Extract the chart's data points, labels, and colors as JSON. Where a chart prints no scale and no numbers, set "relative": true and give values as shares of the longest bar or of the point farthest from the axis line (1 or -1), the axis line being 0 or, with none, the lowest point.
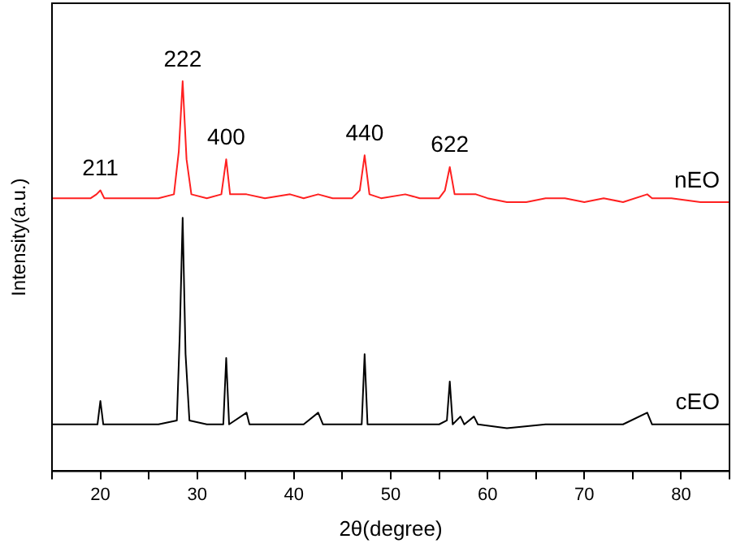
{
  "chart_data": {
    "type": "line",
    "relative": true,
    "xlabel": "2θ(degree)",
    "ylabel": "Intensity(a.u.)",
    "xlim": [
      15,
      85
    ],
    "xticks": [
      {
        "value": 15,
        "label": null
      },
      20,
      {
        "value": 25,
        "label": null
      },
      30,
      {
        "value": 35,
        "label": null
      },
      40,
      {
        "value": 45,
        "label": null
      },
      50,
      {
        "value": 55,
        "label": null
      },
      60,
      {
        "value": 65,
        "label": null
      },
      70,
      {
        "value": 75,
        "label": null
      },
      80,
      {
        "value": 85,
        "label": null
      }
    ],
    "tick_labels": "x",
    "grid": false,
    "legend": false,
    "marker": "none",
    "line_style": "solid",
    "series": [
      {
        "name": "nEO",
        "color": "#ff2020",
        "x": [
          15,
          17,
          19,
          19.6,
          20,
          20.4,
          22,
          24,
          26,
          27.6,
          28.1,
          28.5,
          28.9,
          29.4,
          31,
          32.5,
          33,
          33.4,
          35.1,
          37,
          39.6,
          41,
          42.5,
          44,
          46,
          46.8,
          47.3,
          47.8,
          49,
          51.5,
          53,
          55,
          55.6,
          56.1,
          56.6,
          57.3,
          58.8,
          60,
          62,
          64,
          66,
          68,
          70,
          72,
          74,
          76.5,
          77,
          79,
          82,
          85
        ],
        "values": [
          0.7,
          0.7,
          0.7,
          0.71,
          0.72,
          0.7,
          0.7,
          0.7,
          0.7,
          0.71,
          0.82,
          1,
          0.8,
          0.71,
          0.7,
          0.71,
          0.8,
          0.71,
          0.71,
          0.7,
          0.71,
          0.7,
          0.71,
          0.7,
          0.7,
          0.72,
          0.81,
          0.71,
          0.7,
          0.71,
          0.7,
          0.7,
          0.72,
          0.78,
          0.71,
          0.71,
          0.71,
          0.7,
          0.69,
          0.69,
          0.7,
          0.7,
          0.69,
          0.7,
          0.69,
          0.71,
          0.7,
          0.7,
          0.69,
          0.69
        ]
      },
      {
        "name": "cEO",
        "color": "#000000",
        "x": [
          15,
          17,
          19,
          19.7,
          20,
          20.3,
          22,
          24,
          26,
          27.9,
          28.2,
          28.5,
          28.8,
          29.2,
          31,
          32.7,
          33,
          33.3,
          35.1,
          35.4,
          37,
          39,
          41,
          42.5,
          43,
          45,
          47,
          47.3,
          47.6,
          49,
          51,
          53.5,
          55,
          55.8,
          56.1,
          56.4,
          57.2,
          57.6,
          58.6,
          59,
          62,
          66,
          70,
          74,
          76.5,
          77,
          80,
          83,
          85
        ],
        "values": [
          0.12,
          0.12,
          0.12,
          0.12,
          0.18,
          0.12,
          0.12,
          0.12,
          0.12,
          0.13,
          0.35,
          0.65,
          0.3,
          0.13,
          0.12,
          0.12,
          0.29,
          0.12,
          0.15,
          0.12,
          0.12,
          0.12,
          0.12,
          0.15,
          0.12,
          0.12,
          0.12,
          0.3,
          0.12,
          0.12,
          0.12,
          0.12,
          0.12,
          0.13,
          0.23,
          0.12,
          0.14,
          0.12,
          0.14,
          0.12,
          0.11,
          0.12,
          0.12,
          0.12,
          0.15,
          0.12,
          0.12,
          0.12,
          0.12
        ]
      }
    ],
    "annotations": [
      {
        "text": "211",
        "x": 20,
        "y": 0.72
      },
      {
        "text": "222",
        "x": 28.5,
        "y": 1
      },
      {
        "text": "400",
        "x": 33,
        "y": 0.8
      },
      {
        "text": "440",
        "x": 47.3,
        "y": 0.81
      },
      {
        "text": "622",
        "x": 56.1,
        "y": 0.78
      }
    ]
  }
}
